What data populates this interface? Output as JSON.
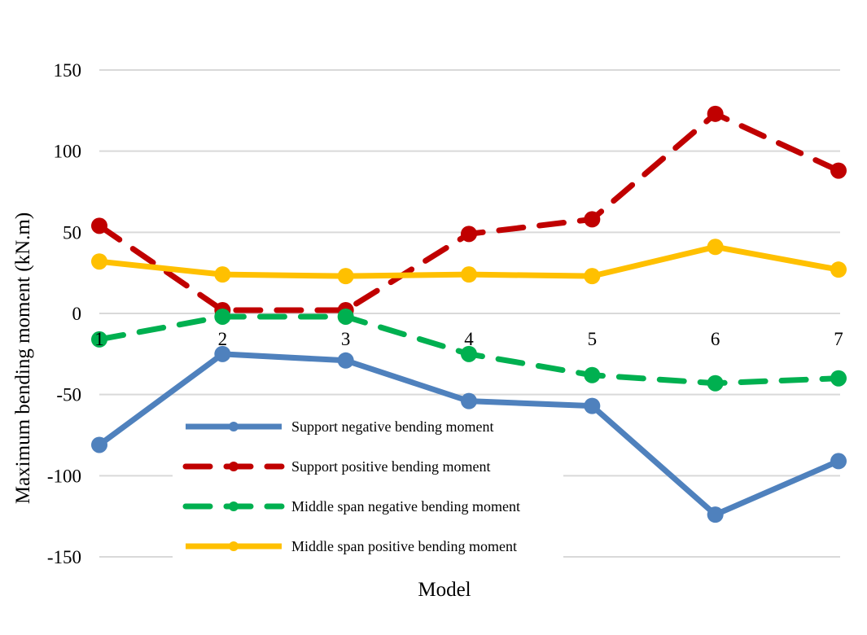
{
  "chart_data": {
    "type": "line",
    "title": "",
    "xlabel": "Model",
    "ylabel": "Maximum bending moment  (kN.m)",
    "categories": [
      "1",
      "2",
      "3",
      "4",
      "5",
      "6",
      "7"
    ],
    "ylim": [
      -150,
      150
    ],
    "yticks": [
      150,
      100,
      50,
      0,
      -50,
      -100,
      -150
    ],
    "ytick_labels": [
      "150",
      "100",
      "50",
      "0",
      "-50",
      "-100",
      "-150"
    ],
    "grid": true,
    "legend_position": "bottom-left",
    "series": [
      {
        "name": "Support negative bending moment",
        "values": [
          -81,
          -25,
          -29,
          -54,
          -57,
          -124,
          -91
        ],
        "color": "#4f81bd",
        "dashed": false
      },
      {
        "name": "Support positive bending moment",
        "values": [
          54,
          2,
          2,
          49,
          58,
          123,
          88
        ],
        "color": "#c00000",
        "dashed": true
      },
      {
        "name": "Middle span negative bending moment",
        "values": [
          -16,
          -2,
          -2,
          -25,
          -38,
          -43,
          -40
        ],
        "color": "#00b050",
        "dashed": true
      },
      {
        "name": "Middle span positive bending moment",
        "values": [
          32,
          24,
          23,
          24,
          23,
          41,
          27
        ],
        "color": "#ffc000",
        "dashed": false
      }
    ]
  }
}
